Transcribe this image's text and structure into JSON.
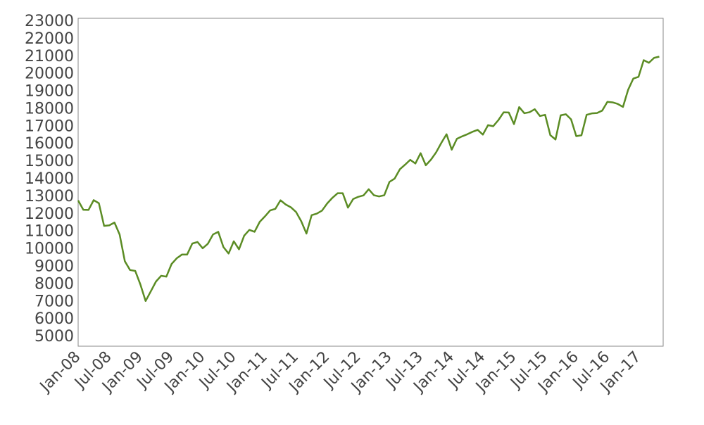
{
  "chart_data": {
    "type": "line",
    "x": [
      "2008-01",
      "2008-02",
      "2008-03",
      "2008-04",
      "2008-05",
      "2008-06",
      "2008-07",
      "2008-08",
      "2008-09",
      "2008-10",
      "2008-11",
      "2008-12",
      "2009-01",
      "2009-02",
      "2009-03",
      "2009-04",
      "2009-05",
      "2009-06",
      "2009-07",
      "2009-08",
      "2009-09",
      "2009-10",
      "2009-11",
      "2009-12",
      "2010-01",
      "2010-02",
      "2010-03",
      "2010-04",
      "2010-05",
      "2010-06",
      "2010-07",
      "2010-08",
      "2010-09",
      "2010-10",
      "2010-11",
      "2010-12",
      "2011-01",
      "2011-02",
      "2011-03",
      "2011-04",
      "2011-05",
      "2011-06",
      "2011-07",
      "2011-08",
      "2011-09",
      "2011-10",
      "2011-11",
      "2011-12",
      "2012-01",
      "2012-02",
      "2012-03",
      "2012-04",
      "2012-05",
      "2012-06",
      "2012-07",
      "2012-08",
      "2012-09",
      "2012-10",
      "2012-11",
      "2012-12",
      "2013-01",
      "2013-02",
      "2013-03",
      "2013-04",
      "2013-05",
      "2013-06",
      "2013-07",
      "2013-08",
      "2013-09",
      "2013-10",
      "2013-11",
      "2013-12",
      "2014-01",
      "2014-02",
      "2014-03",
      "2014-04",
      "2014-05",
      "2014-06",
      "2014-07",
      "2014-08",
      "2014-09",
      "2014-10",
      "2014-11",
      "2014-12",
      "2015-01",
      "2015-02",
      "2015-03",
      "2015-04",
      "2015-05",
      "2015-06",
      "2015-07",
      "2015-08",
      "2015-09",
      "2015-10",
      "2015-11",
      "2015-12",
      "2016-01",
      "2016-02",
      "2016-03",
      "2016-04",
      "2016-05",
      "2016-06",
      "2016-07",
      "2016-08",
      "2016-09",
      "2016-10",
      "2016-11",
      "2016-12",
      "2017-01",
      "2017-02",
      "2017-03",
      "2017-04",
      "2017-05"
    ],
    "series": [
      {
        "color": "#5b8c24",
        "values": [
          12800,
          12270,
          12260,
          12820,
          12640,
          11350,
          11380,
          11540,
          10850,
          9330,
          8830,
          8780,
          8000,
          7060,
          7610,
          8170,
          8500,
          8450,
          9170,
          9500,
          9710,
          9710,
          10340,
          10430,
          10070,
          10330,
          10860,
          11010,
          10140,
          9770,
          10470,
          10010,
          10790,
          11120,
          11010,
          11580,
          11890,
          12230,
          12320,
          12810,
          12570,
          12410,
          12140,
          11610,
          10910,
          11960,
          12050,
          12220,
          12630,
          12950,
          13210,
          13210,
          12390,
          12880,
          13010,
          13090,
          13440,
          13100,
          13030,
          13100,
          13860,
          14050,
          14580,
          14840,
          15120,
          14910,
          15500,
          14810,
          15130,
          15550,
          16090,
          16580,
          15700,
          16320,
          16460,
          16580,
          16720,
          16830,
          16560,
          17100,
          17040,
          17390,
          17830,
          17820,
          17160,
          18130,
          17780,
          17840,
          18010,
          17620,
          17690,
          16530,
          16280,
          17660,
          17720,
          17430,
          16470,
          16520,
          17690,
          17770,
          17790,
          17930,
          18430,
          18400,
          18310,
          18140,
          19120,
          19760,
          19860,
          20810,
          20660,
          20940,
          21010
        ]
      }
    ],
    "xlim": [
      "2008-01",
      "2017-05"
    ],
    "xticks": [
      {
        "value": "2008-01",
        "label": "Jan-08"
      },
      {
        "value": "2008-07",
        "label": "Jul-08"
      },
      {
        "value": "2009-01",
        "label": "Jan-09"
      },
      {
        "value": "2009-07",
        "label": "Jul-09"
      },
      {
        "value": "2010-01",
        "label": "Jan-10"
      },
      {
        "value": "2010-07",
        "label": "Jul-10"
      },
      {
        "value": "2011-01",
        "label": "Jan-11"
      },
      {
        "value": "2011-07",
        "label": "Jul-11"
      },
      {
        "value": "2012-01",
        "label": "Jan-12"
      },
      {
        "value": "2012-07",
        "label": "Jul-12"
      },
      {
        "value": "2013-01",
        "label": "Jan-13"
      },
      {
        "value": "2013-07",
        "label": "Jul-13"
      },
      {
        "value": "2014-01",
        "label": "Jan-14"
      },
      {
        "value": "2014-07",
        "label": "Jul-14"
      },
      {
        "value": "2015-01",
        "label": "Jan-15"
      },
      {
        "value": "2015-07",
        "label": "Jul-15"
      },
      {
        "value": "2016-01",
        "label": "Jan-16"
      },
      {
        "value": "2016-07",
        "label": "Jul-16"
      },
      {
        "value": "2017-01",
        "label": "Jan-17"
      }
    ],
    "ylim": [
      4480,
      23200
    ],
    "yticks": [
      5000,
      6000,
      7000,
      8000,
      9000,
      10000,
      11000,
      12000,
      13000,
      14000,
      15000,
      16000,
      17000,
      18000,
      19000,
      20000,
      21000,
      22000,
      23000
    ],
    "grid": false
  }
}
